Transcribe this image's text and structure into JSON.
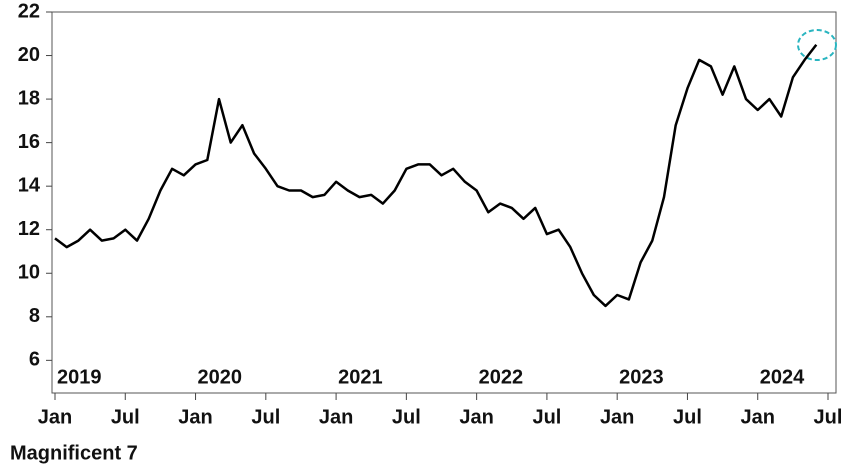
{
  "chart_data": {
    "type": "line",
    "x": [
      "2019-01",
      "2019-02",
      "2019-03",
      "2019-04",
      "2019-05",
      "2019-06",
      "2019-07",
      "2019-08",
      "2019-09",
      "2019-10",
      "2019-11",
      "2019-12",
      "2020-01",
      "2020-02",
      "2020-03",
      "2020-04",
      "2020-05",
      "2020-06",
      "2020-07",
      "2020-08",
      "2020-09",
      "2020-10",
      "2020-11",
      "2020-12",
      "2021-01",
      "2021-02",
      "2021-03",
      "2021-04",
      "2021-05",
      "2021-06",
      "2021-07",
      "2021-08",
      "2021-09",
      "2021-10",
      "2021-11",
      "2021-12",
      "2022-01",
      "2022-02",
      "2022-03",
      "2022-04",
      "2022-05",
      "2022-06",
      "2022-07",
      "2022-08",
      "2022-09",
      "2022-10",
      "2022-11",
      "2022-12",
      "2023-01",
      "2023-02",
      "2023-03",
      "2023-04",
      "2023-05",
      "2023-06",
      "2023-07",
      "2023-08",
      "2023-09",
      "2023-10",
      "2023-11",
      "2023-12",
      "2024-01",
      "2024-02",
      "2024-03",
      "2024-04",
      "2024-05",
      "2024-06"
    ],
    "series": [
      {
        "name": "Magnificent 7",
        "color": "#000000",
        "values": [
          11.6,
          11.2,
          11.5,
          12.0,
          11.5,
          11.6,
          12.0,
          11.5,
          12.5,
          13.8,
          14.8,
          14.5,
          15.0,
          15.2,
          18.0,
          16.0,
          16.8,
          15.5,
          14.8,
          14.0,
          13.8,
          13.8,
          13.5,
          13.6,
          14.2,
          13.8,
          13.5,
          13.6,
          13.2,
          13.8,
          14.8,
          15.0,
          15.0,
          14.5,
          14.8,
          14.2,
          13.8,
          12.8,
          13.2,
          13.0,
          12.5,
          13.0,
          11.8,
          12.0,
          11.2,
          10.0,
          9.0,
          8.5,
          9.0,
          8.8,
          10.5,
          11.5,
          13.5,
          16.8,
          18.5,
          19.8,
          19.5,
          18.2,
          19.5,
          18.0,
          17.5,
          18.0,
          17.2,
          19.0,
          19.8,
          20.5
        ]
      }
    ],
    "xlim": [
      "2019-01",
      "2024-07"
    ],
    "xticks": [
      {
        "value": "2019-01",
        "label": "Jan"
      },
      {
        "value": "2019-07",
        "label": "Jul"
      },
      {
        "value": "2020-01",
        "label": "Jan"
      },
      {
        "value": "2020-07",
        "label": "Jul"
      },
      {
        "value": "2021-01",
        "label": "Jan"
      },
      {
        "value": "2021-07",
        "label": "Jul"
      },
      {
        "value": "2022-01",
        "label": "Jan"
      },
      {
        "value": "2022-07",
        "label": "Jul"
      },
      {
        "value": "2023-01",
        "label": "Jan"
      },
      {
        "value": "2023-07",
        "label": "Jul"
      },
      {
        "value": "2024-01",
        "label": "Jan"
      },
      {
        "value": "2024-07",
        "label": "Jul"
      }
    ],
    "year_labels": [
      {
        "value": "2019-01",
        "label": "2019"
      },
      {
        "value": "2020-01",
        "label": "2020"
      },
      {
        "value": "2021-01",
        "label": "2021"
      },
      {
        "value": "2022-01",
        "label": "2022"
      },
      {
        "value": "2023-01",
        "label": "2023"
      },
      {
        "value": "2024-01",
        "label": "2024"
      }
    ],
    "ylim": [
      4.5,
      22
    ],
    "yticks": [
      6,
      8,
      10,
      12,
      14,
      16,
      18,
      20,
      22
    ],
    "grid": false
  }
}
